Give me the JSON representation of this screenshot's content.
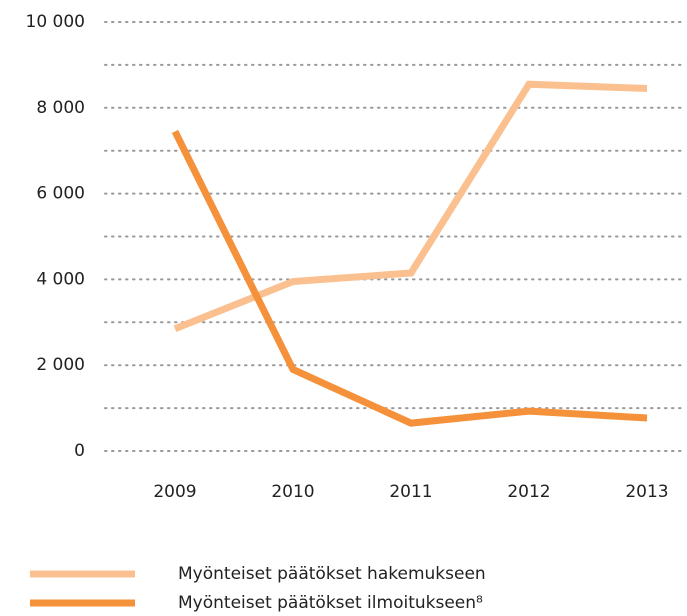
{
  "chart_data": {
    "type": "line",
    "categories": [
      "2009",
      "2010",
      "2011",
      "2012",
      "2013"
    ],
    "series": [
      {
        "name": "Myönteiset päätökset hakemukseen",
        "color": "#fbc08f",
        "values": [
          2850,
          3950,
          4150,
          8550,
          8450
        ]
      },
      {
        "name": "Myönteiset päätökset ilmoitukseen⁸",
        "color": "#f4913a",
        "values": [
          7450,
          1900,
          650,
          930,
          770
        ]
      }
    ],
    "ylim": [
      0,
      10000
    ],
    "yticks": [
      0,
      {
        "value": 2000,
        "label": "2 000"
      },
      {
        "value": 4000,
        "label": "4 000"
      },
      {
        "value": 6000,
        "label": "6 000"
      },
      {
        "value": 8000,
        "label": "8 000"
      },
      {
        "value": 10000,
        "label": "10 000"
      }
    ],
    "minor_grid": [
      1000,
      3000,
      5000,
      7000,
      9000
    ],
    "grid": true,
    "legend": "bottom"
  }
}
